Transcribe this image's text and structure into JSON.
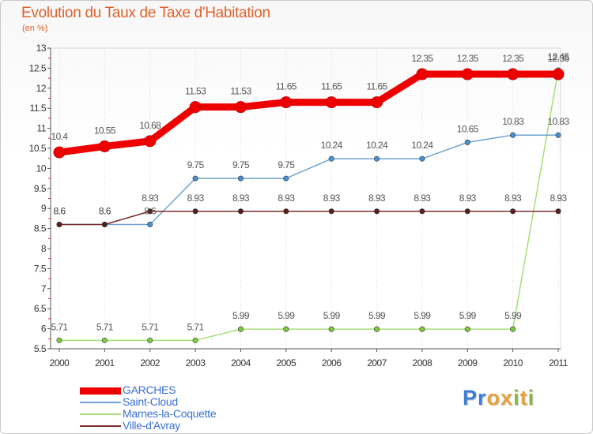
{
  "title": "Evolution du Taux de Taxe d'Habitation",
  "subtitle": "(en %)",
  "logo": {
    "letters": [
      {
        "char": "P",
        "color": "#3d7fd6"
      },
      {
        "char": "r",
        "color": "#3d7fd6"
      },
      {
        "char": "o",
        "color": "#e8a23a"
      },
      {
        "char": "x",
        "color": "#e8a23a"
      },
      {
        "char": "i",
        "color": "#89b93a"
      },
      {
        "char": "t",
        "color": "#e8a23a"
      },
      {
        "char": "i",
        "color": "#89b93a"
      }
    ]
  },
  "chart_data": {
    "type": "line",
    "title": "Evolution du Taux de Taxe d'Habitation",
    "ylabel": "(en %)",
    "xlabel": "",
    "x": [
      "2000",
      "2001",
      "2002",
      "2003",
      "2004",
      "2005",
      "2006",
      "2007",
      "2008",
      "2009",
      "2010",
      "2011"
    ],
    "ylim": [
      5.5,
      13
    ],
    "y_ticks": [
      "5.5",
      "6",
      "6.5",
      "7",
      "7.5",
      "8",
      "8.5",
      "9",
      "9.5",
      "10",
      "10.5",
      "11",
      "11.5",
      "12",
      "12.5",
      "13"
    ],
    "grid": "vertical",
    "legend_position": "bottom-left",
    "series": [
      {
        "name": "GARCHES",
        "color": "#ee0000",
        "marker_color": "#ee0000",
        "values": [
          10.4,
          10.55,
          10.68,
          11.53,
          11.53,
          11.65,
          11.65,
          11.65,
          12.35,
          12.35,
          12.35,
          12.35
        ],
        "labels": [
          "10.4",
          "10.55",
          "10.68",
          "11.53",
          "11.53",
          "11.65",
          "11.65",
          "11.65",
          "12.35",
          "12.35",
          "12.35",
          "12.35"
        ]
      },
      {
        "name": "Saint-Cloud",
        "color": "#6fa3d3",
        "marker_color": "#4a8fd0",
        "values": [
          8.6,
          8.6,
          8.6,
          9.75,
          9.75,
          9.75,
          10.24,
          10.24,
          10.24,
          10.65,
          10.83,
          10.83
        ],
        "labels": [
          "8.6",
          "8.6",
          "8.6",
          "9.75",
          "9.75",
          "9.75",
          "10.24",
          "10.24",
          "10.24",
          "10.65",
          "10.83",
          "10.83"
        ]
      },
      {
        "name": "Marnes-la-Coquette",
        "color": "#a6de7a",
        "marker_color": "#7ccc3e",
        "values": [
          5.71,
          5.71,
          5.71,
          5.71,
          5.99,
          5.99,
          5.99,
          5.99,
          5.99,
          5.99,
          5.99,
          12.45
        ],
        "labels": [
          "5.71",
          "5.71",
          "5.71",
          "5.71",
          "5.99",
          "5.99",
          "5.99",
          "5.99",
          "5.99",
          "5.99",
          "5.99",
          "12.45"
        ]
      },
      {
        "name": "Ville-d'Avray",
        "color": "#7a2c2c",
        "marker_color": "#5a1e1e",
        "values": [
          8.6,
          8.6,
          8.93,
          8.93,
          8.93,
          8.93,
          8.93,
          8.93,
          8.93,
          8.93,
          8.93,
          8.93
        ],
        "labels": [
          "8.6",
          "8.6",
          "8.93",
          "8.93",
          "8.93",
          "8.93",
          "8.93",
          "8.93",
          "8.93",
          "8.93",
          "8.93",
          "8.93"
        ]
      }
    ]
  }
}
